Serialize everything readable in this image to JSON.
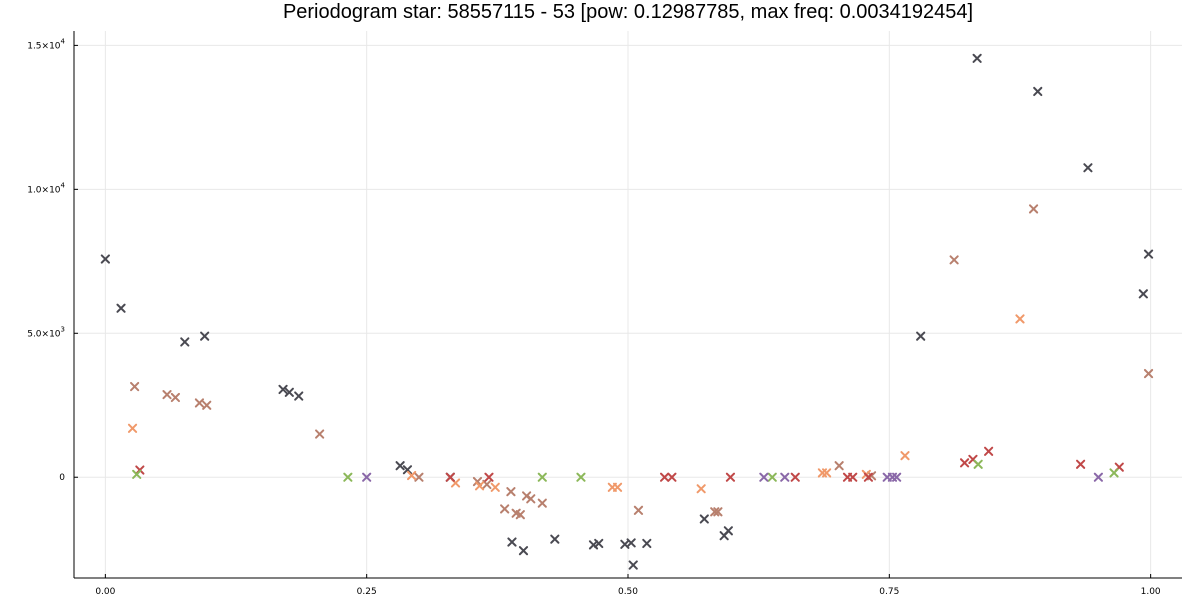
{
  "chart_data": {
    "type": "scatter",
    "title": "Periodogram star: 58557115 - 53 [pow: 0.12987785, max freq: 0.0034192454]",
    "xlabel": "",
    "ylabel": "",
    "xlim": [
      -0.03,
      1.03
    ],
    "ylim": [
      -3500,
      15500
    ],
    "grid": true,
    "legend": "none",
    "marker": "x",
    "x_ticks": [
      {
        "value": 0.0,
        "label": "0.00"
      },
      {
        "value": 0.25,
        "label": "0.25"
      },
      {
        "value": 0.5,
        "label": "0.50"
      },
      {
        "value": 0.75,
        "label": "0.75"
      },
      {
        "value": 1.0,
        "label": "1.00"
      }
    ],
    "y_ticks": [
      {
        "value": 0,
        "label": "0"
      },
      {
        "value": 5000,
        "label": "5.0×10",
        "exp": "3"
      },
      {
        "value": 10000,
        "label": "1.0×10",
        "exp": "4"
      },
      {
        "value": 15000,
        "label": "1.5×10",
        "exp": "4"
      }
    ],
    "series": [
      {
        "color": "#4a4a52",
        "points": [
          [
            0.0,
            7580
          ],
          [
            0.015,
            5870
          ],
          [
            0.076,
            4700
          ],
          [
            0.095,
            4900
          ],
          [
            0.17,
            3050
          ],
          [
            0.176,
            2950
          ],
          [
            0.185,
            2820
          ],
          [
            0.282,
            400
          ],
          [
            0.289,
            260
          ],
          [
            0.33,
            0
          ],
          [
            0.389,
            -2250
          ],
          [
            0.4,
            -2550
          ],
          [
            0.43,
            -2150
          ],
          [
            0.467,
            -2350
          ],
          [
            0.472,
            -2300
          ],
          [
            0.497,
            -2330
          ],
          [
            0.503,
            -2280
          ],
          [
            0.505,
            -3050
          ],
          [
            0.518,
            -2300
          ],
          [
            0.573,
            -1450
          ],
          [
            0.592,
            -2030
          ],
          [
            0.596,
            -1860
          ],
          [
            0.78,
            4900
          ],
          [
            0.834,
            14550
          ],
          [
            0.892,
            13400
          ],
          [
            0.94,
            10750
          ],
          [
            0.993,
            6370
          ],
          [
            0.998,
            7750
          ]
        ]
      },
      {
        "color": "#b8806e",
        "points": [
          [
            0.028,
            3150
          ],
          [
            0.059,
            2870
          ],
          [
            0.067,
            2770
          ],
          [
            0.09,
            2580
          ],
          [
            0.097,
            2500
          ],
          [
            0.205,
            1500
          ],
          [
            0.3,
            0
          ],
          [
            0.356,
            -150
          ],
          [
            0.365,
            -250
          ],
          [
            0.382,
            -1100
          ],
          [
            0.388,
            -500
          ],
          [
            0.393,
            -1250
          ],
          [
            0.397,
            -1300
          ],
          [
            0.403,
            -650
          ],
          [
            0.407,
            -750
          ],
          [
            0.418,
            -900
          ],
          [
            0.51,
            -1150
          ],
          [
            0.583,
            -1200
          ],
          [
            0.586,
            -1200
          ],
          [
            0.702,
            400
          ],
          [
            0.733,
            50
          ],
          [
            0.812,
            7550
          ],
          [
            0.888,
            9320
          ],
          [
            0.998,
            3600
          ]
        ]
      },
      {
        "color": "#f0996a",
        "points": [
          [
            0.026,
            1700
          ],
          [
            0.293,
            60
          ],
          [
            0.335,
            -200
          ],
          [
            0.358,
            -300
          ],
          [
            0.373,
            -350
          ],
          [
            0.485,
            -350
          ],
          [
            0.49,
            -350
          ],
          [
            0.57,
            -400
          ],
          [
            0.686,
            150
          ],
          [
            0.69,
            150
          ],
          [
            0.728,
            100
          ],
          [
            0.765,
            750
          ],
          [
            0.875,
            5500
          ]
        ]
      },
      {
        "color": "#c04848",
        "points": [
          [
            0.033,
            250
          ],
          [
            0.33,
            0
          ],
          [
            0.367,
            0
          ],
          [
            0.535,
            0
          ],
          [
            0.542,
            0
          ],
          [
            0.598,
            0
          ],
          [
            0.66,
            0
          ],
          [
            0.71,
            0
          ],
          [
            0.715,
            0
          ],
          [
            0.73,
            0
          ],
          [
            0.822,
            500
          ],
          [
            0.83,
            620
          ],
          [
            0.845,
            900
          ],
          [
            0.933,
            450
          ],
          [
            0.97,
            350
          ]
        ]
      },
      {
        "color": "#8cb85a",
        "points": [
          [
            0.03,
            100
          ],
          [
            0.232,
            0
          ],
          [
            0.418,
            0
          ],
          [
            0.455,
            0
          ],
          [
            0.638,
            0
          ],
          [
            0.835,
            450
          ],
          [
            0.965,
            150
          ]
        ]
      },
      {
        "color": "#8a68a8",
        "points": [
          [
            0.25,
            0
          ],
          [
            0.63,
            0
          ],
          [
            0.65,
            0
          ],
          [
            0.748,
            0
          ],
          [
            0.753,
            0
          ],
          [
            0.757,
            0
          ],
          [
            0.95,
            0
          ]
        ]
      }
    ]
  }
}
